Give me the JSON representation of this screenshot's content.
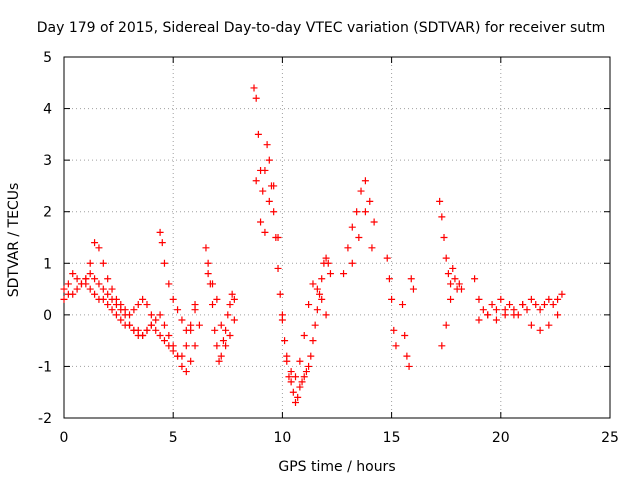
{
  "chart_data": {
    "type": "scatter",
    "title": "Day 179 of 2015, Sidereal Day-to-day VTEC variation (SDTVAR) for receiver sutm",
    "xlabel": "GPS time / hours",
    "ylabel": "SDTVAR / TECUs",
    "xlim": [
      0,
      25
    ],
    "ylim": [
      -2,
      5
    ],
    "xticks": [
      0,
      5,
      10,
      15,
      20,
      25
    ],
    "yticks": [
      -2,
      -1,
      0,
      1,
      2,
      3,
      4,
      5
    ],
    "grid": true,
    "marker": "plus",
    "marker_color": "#ff0000",
    "series": [
      {
        "name": "SDTVAR",
        "x": [
          0.0,
          0.2,
          0.4,
          0.6,
          0.8,
          1.0,
          1.2,
          1.4,
          1.6,
          1.8,
          2.0,
          2.2,
          2.4,
          2.6,
          2.8,
          3.0,
          3.2,
          3.4,
          3.6,
          3.8,
          4.0,
          4.2,
          4.4,
          4.6,
          4.8,
          5.0,
          5.2,
          5.4,
          5.6,
          5.8,
          6.0,
          6.2,
          0.0,
          0.2,
          0.4,
          0.6,
          0.8,
          1.0,
          1.2,
          1.4,
          1.6,
          1.8,
          2.0,
          2.2,
          2.4,
          2.6,
          2.8,
          3.0,
          3.2,
          3.4,
          3.6,
          3.8,
          4.0,
          4.2,
          4.4,
          4.6,
          4.8,
          5.0,
          5.2,
          5.4,
          5.6,
          5.8,
          6.0,
          1.0,
          1.2,
          1.4,
          1.6,
          1.8,
          2.0,
          2.2,
          2.4,
          2.6,
          2.8,
          3.0,
          3.2,
          3.4,
          3.6,
          3.8,
          4.0,
          4.4,
          4.5,
          4.6,
          4.8,
          5.0,
          5.2,
          5.4,
          5.6,
          5.8,
          6.0,
          6.5,
          6.6,
          6.7,
          6.8,
          6.9,
          7.0,
          7.1,
          7.2,
          7.3,
          7.4,
          7.5,
          7.6,
          7.7,
          7.8,
          6.6,
          6.8,
          7.0,
          7.2,
          7.4,
          7.6,
          7.8,
          8.7,
          8.8,
          8.9,
          9.0,
          9.1,
          9.2,
          9.3,
          9.4,
          9.5,
          9.6,
          9.7,
          9.8,
          9.9,
          10.0,
          10.1,
          10.2,
          10.3,
          10.4,
          10.5,
          10.6,
          10.7,
          10.8,
          10.9,
          11.0,
          11.1,
          11.2,
          11.3,
          11.4,
          11.5,
          11.6,
          11.7,
          11.8,
          11.9,
          12.0,
          12.1,
          12.2,
          8.8,
          9.0,
          9.2,
          9.4,
          9.6,
          9.8,
          10.0,
          10.2,
          10.4,
          10.6,
          10.8,
          11.0,
          11.2,
          11.4,
          11.6,
          11.8,
          12.0,
          12.8,
          13.0,
          13.2,
          13.4,
          13.6,
          13.8,
          14.0,
          14.2,
          13.2,
          13.5,
          13.8,
          14.1,
          14.8,
          14.9,
          15.0,
          15.1,
          15.2,
          15.5,
          15.6,
          15.7,
          15.8,
          15.9,
          16.0,
          17.2,
          17.3,
          17.4,
          17.5,
          17.6,
          17.7,
          17.8,
          17.9,
          18.0,
          18.1,
          18.2,
          17.3,
          17.5,
          17.7,
          18.8,
          19.0,
          19.2,
          19.4,
          19.6,
          19.8,
          20.0,
          20.2,
          20.4,
          20.6,
          20.8,
          21.0,
          21.2,
          21.4,
          21.6,
          21.8,
          22.0,
          22.2,
          22.4,
          22.6,
          22.8,
          19.0,
          19.4,
          19.8,
          20.2,
          20.6,
          21.0,
          21.4,
          21.8,
          22.2,
          22.6
        ],
        "y": [
          0.5,
          0.6,
          0.8,
          0.7,
          0.6,
          0.6,
          0.5,
          0.4,
          0.3,
          0.3,
          0.2,
          0.1,
          0.0,
          -0.1,
          -0.2,
          -0.2,
          -0.3,
          -0.3,
          -0.4,
          -0.3,
          -0.2,
          -0.1,
          0.0,
          -0.2,
          -0.4,
          -0.6,
          -0.8,
          -1.0,
          -1.1,
          -0.9,
          -0.6,
          -0.2,
          0.3,
          0.4,
          0.4,
          0.5,
          0.6,
          0.7,
          0.8,
          0.7,
          0.6,
          0.5,
          0.4,
          0.3,
          0.2,
          0.1,
          0.0,
          -0.2,
          -0.3,
          -0.4,
          -0.4,
          -0.3,
          -0.2,
          -0.3,
          -0.4,
          -0.5,
          -0.6,
          -0.7,
          -0.8,
          -0.8,
          -0.6,
          -0.3,
          0.2,
          0.7,
          1.0,
          1.4,
          1.3,
          1.0,
          0.7,
          0.5,
          0.3,
          0.2,
          0.1,
          0.0,
          0.1,
          0.2,
          0.3,
          0.2,
          0.0,
          1.6,
          1.4,
          1.0,
          0.6,
          0.3,
          0.1,
          -0.1,
          -0.3,
          -0.2,
          0.1,
          1.3,
          1.0,
          0.6,
          0.2,
          -0.3,
          -0.6,
          -0.9,
          -0.8,
          -0.5,
          -0.3,
          0.0,
          0.2,
          0.4,
          0.3,
          0.8,
          0.6,
          0.3,
          -0.2,
          -0.6,
          -0.4,
          -0.1,
          4.4,
          4.2,
          3.5,
          2.8,
          2.4,
          2.8,
          3.3,
          3.0,
          2.5,
          2.0,
          1.5,
          0.9,
          0.4,
          -0.1,
          -0.5,
          -0.9,
          -1.2,
          -1.3,
          -1.5,
          -1.7,
          -1.6,
          -1.4,
          -1.3,
          -1.2,
          -1.1,
          -1.0,
          -0.8,
          -0.5,
          -0.2,
          0.1,
          0.4,
          0.7,
          1.0,
          1.1,
          1.0,
          0.8,
          2.6,
          1.8,
          1.6,
          2.2,
          2.5,
          1.5,
          0.0,
          -0.8,
          -1.1,
          -1.2,
          -0.9,
          -0.4,
          0.2,
          0.6,
          0.5,
          0.3,
          0.0,
          0.8,
          1.3,
          1.7,
          2.0,
          2.4,
          2.6,
          2.2,
          1.8,
          1.0,
          1.5,
          2.0,
          1.3,
          1.1,
          0.7,
          0.3,
          -0.3,
          -0.6,
          0.2,
          -0.4,
          -0.8,
          -1.0,
          0.7,
          0.5,
          2.2,
          1.9,
          1.5,
          1.1,
          0.8,
          0.6,
          0.9,
          0.7,
          0.5,
          0.6,
          0.5,
          -0.6,
          -0.2,
          0.3,
          0.7,
          0.3,
          0.1,
          0.0,
          0.2,
          0.1,
          0.3,
          0.0,
          0.2,
          0.1,
          0.0,
          0.2,
          0.1,
          0.3,
          0.2,
          0.1,
          0.2,
          0.3,
          0.2,
          0.3,
          0.4,
          -0.1,
          0.0,
          -0.1,
          0.1,
          0.0,
          0.2,
          -0.2,
          -0.3,
          -0.2,
          0.0
        ]
      }
    ]
  }
}
